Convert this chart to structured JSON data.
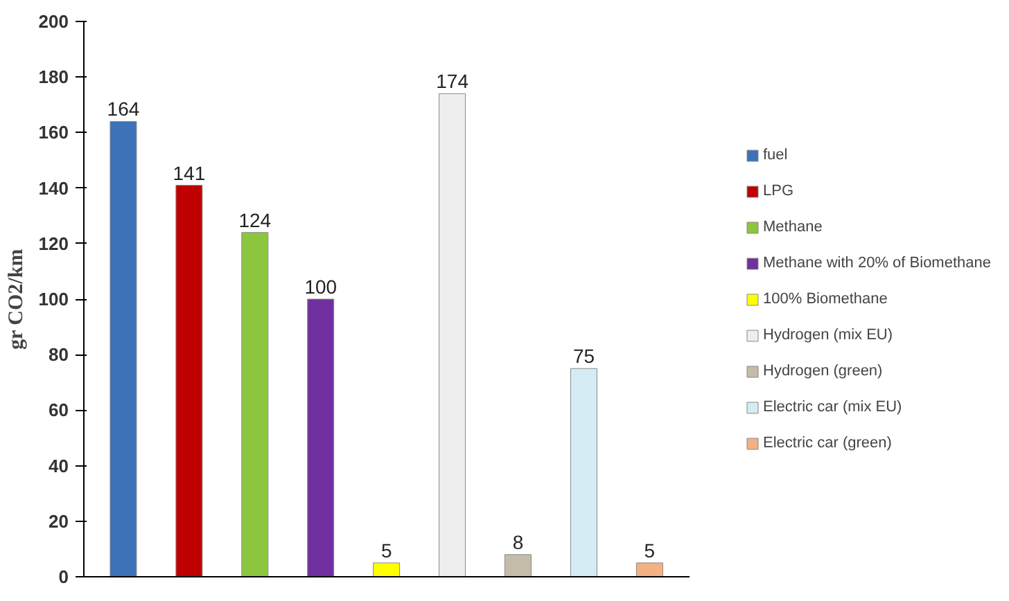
{
  "chart_data": {
    "type": "bar",
    "ylabel": "gr CO2/km",
    "categories": [
      null,
      null,
      null,
      null,
      null,
      null,
      null,
      null,
      null
    ],
    "series": [
      {
        "name": "fuel",
        "color": "#3d72b8",
        "values": [
          164,
          null,
          null,
          null,
          null,
          null,
          null,
          null,
          null
        ]
      },
      {
        "name": "LPG",
        "color": "#c00000",
        "values": [
          null,
          141,
          null,
          null,
          null,
          null,
          null,
          null,
          null
        ]
      },
      {
        "name": "Methane",
        "color": "#8cc63f",
        "values": [
          null,
          null,
          124,
          null,
          null,
          null,
          null,
          null,
          null
        ]
      },
      {
        "name": "Methane with 20% of Biomethane",
        "color": "#7030a0",
        "values": [
          null,
          null,
          null,
          100,
          null,
          null,
          null,
          null,
          null
        ]
      },
      {
        "name": "100% Biomethane",
        "color": "#ffff00",
        "values": [
          null,
          null,
          null,
          null,
          5,
          null,
          null,
          null,
          null
        ]
      },
      {
        "name": "Hydrogen (mix EU)",
        "color": "#eeeeee",
        "values": [
          null,
          null,
          null,
          null,
          null,
          174,
          null,
          null,
          null
        ]
      },
      {
        "name": "Hydrogen (green)",
        "color": "#c4bca8",
        "values": [
          null,
          null,
          null,
          null,
          null,
          null,
          8,
          null,
          null
        ]
      },
      {
        "name": "Electric car (mix EU)",
        "color": "#d4ecf4",
        "values": [
          null,
          null,
          null,
          null,
          null,
          null,
          null,
          75,
          null
        ]
      },
      {
        "name": "Electric car (green)",
        "color": "#f4b183",
        "values": [
          null,
          null,
          null,
          null,
          null,
          null,
          null,
          null,
          5
        ]
      }
    ],
    "ylim": [
      0,
      200
    ],
    "yticks": [
      0,
      20,
      40,
      60,
      80,
      100,
      120,
      140,
      160,
      180,
      200
    ],
    "grid": false,
    "legend": "right",
    "data_labels": true
  }
}
